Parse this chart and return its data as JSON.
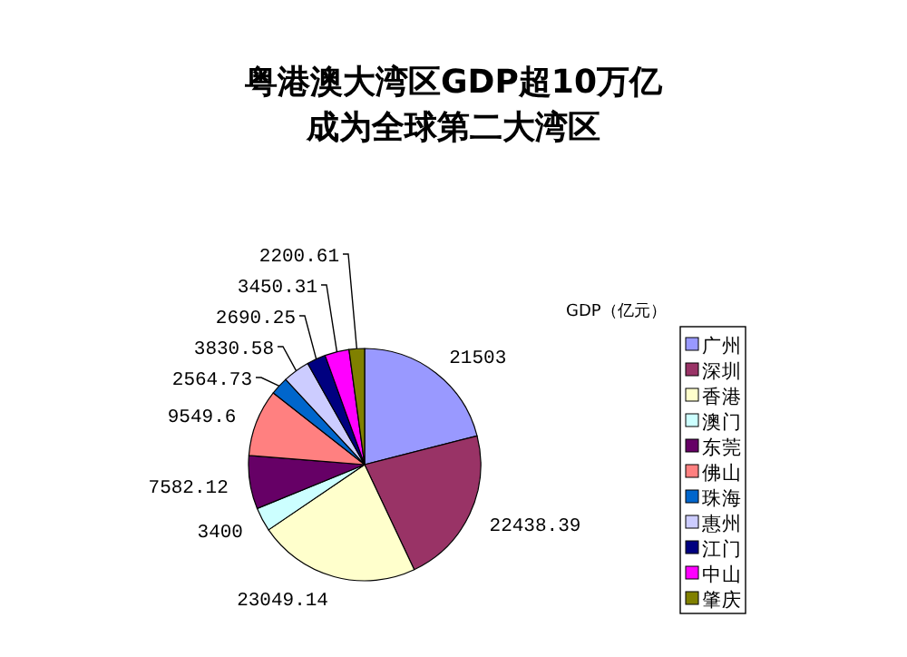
{
  "chart_data": {
    "type": "pie",
    "title": "粤港澳大湾区GDP超10万亿",
    "subtitle": "成为全球第二大湾区",
    "legend_title": "GDP（亿元）",
    "legend": "right",
    "data_labels": true,
    "categories": [
      "广州",
      "深圳",
      "香港",
      "澳门",
      "东莞",
      "佛山",
      "珠海",
      "惠州",
      "江门",
      "中山",
      "肇庆"
    ],
    "values": [
      21503,
      22438.39,
      23049.14,
      3400,
      7582.12,
      9549.6,
      2564.73,
      3830.58,
      2690.25,
      3450.31,
      2200.61
    ],
    "colors": [
      "#9999ff",
      "#993366",
      "#ffffcc",
      "#ccffff",
      "#660066",
      "#ff8080",
      "#0066cc",
      "#ccccff",
      "#000080",
      "#ff00ff",
      "#808000"
    ]
  }
}
